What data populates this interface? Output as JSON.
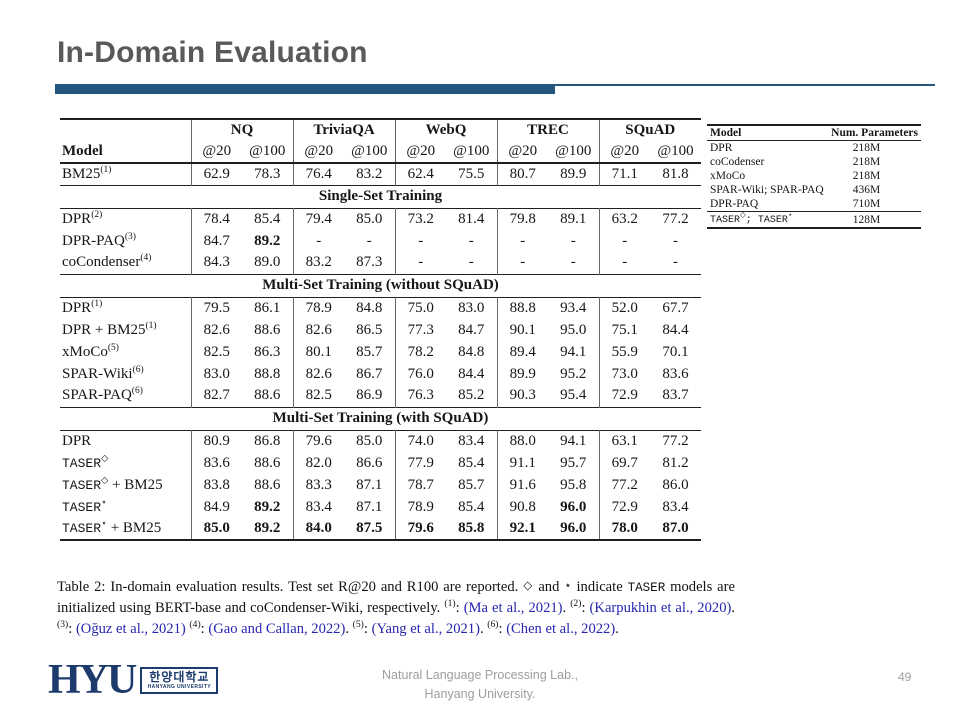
{
  "colors": {
    "accent": "#24567E",
    "title_gray": "#595959",
    "link": "#2626AE",
    "muted": "#9E9E9E",
    "logo": "#1C3B6D"
  },
  "slide": {
    "title": "In-Domain Evaluation",
    "page_number": "49",
    "footer_line1": "Natural Language Processing  Lab.,",
    "footer_line2": "Hanyang University."
  },
  "logo": {
    "acronym": "HYU",
    "korean": "한양대학교",
    "english": "HANYANG UNIVERSITY"
  },
  "main_table": {
    "model_header": "Model",
    "groups": [
      "NQ",
      "TriviaQA",
      "WebQ",
      "TREC",
      "SQuAD"
    ],
    "subheaders": [
      "@20",
      "@100"
    ],
    "sections": [
      {
        "header": null,
        "rows": [
          {
            "name": "BM25",
            "sup": "(1)",
            "values": [
              "62.9",
              "78.3",
              "76.4",
              "83.2",
              "62.4",
              "75.5",
              "80.7",
              "89.9",
              "71.1",
              "81.8"
            ]
          }
        ]
      },
      {
        "header": "Single-Set Training",
        "rows": [
          {
            "name": "DPR",
            "sup": "(2)",
            "values": [
              "78.4",
              "85.4",
              "79.4",
              "85.0",
              "73.2",
              "81.4",
              "79.8",
              "89.1",
              "63.2",
              "77.2"
            ]
          },
          {
            "name": "DPR-PAQ",
            "sup": "(3)",
            "values": [
              "84.7",
              "89.2",
              "-",
              "-",
              "-",
              "-",
              "-",
              "-",
              "-",
              "-"
            ],
            "bold": [
              1
            ]
          },
          {
            "name": "coCondenser",
            "sup": "(4)",
            "values": [
              "84.3",
              "89.0",
              "83.2",
              "87.3",
              "-",
              "-",
              "-",
              "-",
              "-",
              "-"
            ]
          }
        ]
      },
      {
        "header": "Multi-Set Training (without SQuAD)",
        "rows": [
          {
            "name": "DPR",
            "sup": "(1)",
            "values": [
              "79.5",
              "86.1",
              "78.9",
              "84.8",
              "75.0",
              "83.0",
              "88.8",
              "93.4",
              "52.0",
              "67.7"
            ]
          },
          {
            "name": "DPR + BM25",
            "sup": "(1)",
            "values": [
              "82.6",
              "88.6",
              "82.6",
              "86.5",
              "77.3",
              "84.7",
              "90.1",
              "95.0",
              "75.1",
              "84.4"
            ]
          },
          {
            "name": "xMoCo",
            "sup": "(5)",
            "values": [
              "82.5",
              "86.3",
              "80.1",
              "85.7",
              "78.2",
              "84.8",
              "89.4",
              "94.1",
              "55.9",
              "70.1"
            ]
          },
          {
            "name": "SPAR-Wiki",
            "sup": "(6)",
            "values": [
              "83.0",
              "88.8",
              "82.6",
              "86.7",
              "76.0",
              "84.4",
              "89.9",
              "95.2",
              "73.0",
              "83.6"
            ]
          },
          {
            "name": "SPAR-PAQ",
            "sup": "(6)",
            "values": [
              "82.7",
              "88.6",
              "82.5",
              "86.9",
              "76.3",
              "85.2",
              "90.3",
              "95.4",
              "72.9",
              "83.7"
            ]
          }
        ]
      },
      {
        "header": "Multi-Set Training (with SQuAD)",
        "rows": [
          {
            "name": "DPR",
            "values": [
              "80.9",
              "86.8",
              "79.6",
              "85.0",
              "74.0",
              "83.4",
              "88.0",
              "94.1",
              "63.1",
              "77.2"
            ]
          },
          {
            "name": "TASER",
            "mono": true,
            "sup": "◇",
            "values": [
              "83.6",
              "88.6",
              "82.0",
              "86.6",
              "77.9",
              "85.4",
              "91.1",
              "95.7",
              "69.7",
              "81.2"
            ]
          },
          {
            "name": "TASER",
            "mono": true,
            "sup": "◇",
            "suffix": " + BM25",
            "values": [
              "83.8",
              "88.6",
              "83.3",
              "87.1",
              "78.7",
              "85.7",
              "91.6",
              "95.8",
              "77.2",
              "86.0"
            ]
          },
          {
            "name": "TASER",
            "mono": true,
            "sup": "⋆",
            "values": [
              "84.9",
              "89.2",
              "83.4",
              "87.1",
              "78.9",
              "85.4",
              "90.8",
              "96.0",
              "72.9",
              "83.4"
            ],
            "bold": [
              1,
              7
            ]
          },
          {
            "name": "TASER",
            "mono": true,
            "sup": "⋆",
            "suffix": " + BM25",
            "values": [
              "85.0",
              "89.2",
              "84.0",
              "87.5",
              "79.6",
              "85.8",
              "92.1",
              "96.0",
              "78.0",
              "87.0"
            ],
            "bold": [
              0,
              1,
              2,
              3,
              4,
              5,
              6,
              7,
              8,
              9
            ]
          }
        ]
      }
    ]
  },
  "side_table": {
    "headers": [
      "Model",
      "Num. Parameters"
    ],
    "rows": [
      {
        "model": "DPR",
        "params": "218M"
      },
      {
        "model": "coCodenser",
        "params": "218M"
      },
      {
        "model": "xMoCo",
        "params": "218M"
      },
      {
        "model": "SPAR-Wiki; SPAR-PAQ",
        "params": "436M"
      },
      {
        "model": "DPR-PAQ",
        "params": "710M"
      }
    ],
    "last_row": {
      "name1": "TASER",
      "sup1": "◇",
      "sep": "; ",
      "name2": "TASER",
      "sup2": "⋆",
      "params": "128M"
    }
  },
  "caption": {
    "segments": [
      {
        "t": "Table 2: In-domain evaluation results. Test set R@20 and R100 are reported. ",
        "s": "plain"
      },
      {
        "t": "◇",
        "s": "sym"
      },
      {
        "t": " and ",
        "s": "plain"
      },
      {
        "t": "⋆",
        "s": "sym"
      },
      {
        "t": " indicate ",
        "s": "plain"
      },
      {
        "t": "TASER",
        "s": "mono"
      },
      {
        "t": " models are initialized using BERT-base and coCondenser-Wiki, respectively. ",
        "s": "plain"
      },
      {
        "t": "(1)",
        "s": "sup"
      },
      {
        "t": ": ",
        "s": "plain"
      },
      {
        "t": "(Ma et al., 2021)",
        "s": "link"
      },
      {
        "t": ". ",
        "s": "plain"
      },
      {
        "t": "(2)",
        "s": "sup"
      },
      {
        "t": ": ",
        "s": "plain"
      },
      {
        "t": "(Karpukhin et al., 2020)",
        "s": "link"
      },
      {
        "t": ". ",
        "s": "plain"
      },
      {
        "t": "(3)",
        "s": "sup"
      },
      {
        "t": ": ",
        "s": "plain"
      },
      {
        "t": "(Oğuz et al., 2021)",
        "s": "link"
      },
      {
        "t": " ",
        "s": "plain"
      },
      {
        "t": "(4)",
        "s": "sup"
      },
      {
        "t": ": ",
        "s": "plain"
      },
      {
        "t": "(Gao and Callan, 2022)",
        "s": "link"
      },
      {
        "t": ". ",
        "s": "plain"
      },
      {
        "t": "(5)",
        "s": "sup"
      },
      {
        "t": ": ",
        "s": "plain"
      },
      {
        "t": "(Yang et al., 2021)",
        "s": "link"
      },
      {
        "t": ". ",
        "s": "plain"
      },
      {
        "t": "(6)",
        "s": "sup"
      },
      {
        "t": ": ",
        "s": "plain"
      },
      {
        "t": "(Chen et al., 2022)",
        "s": "link"
      },
      {
        "t": ".",
        "s": "plain"
      }
    ]
  }
}
